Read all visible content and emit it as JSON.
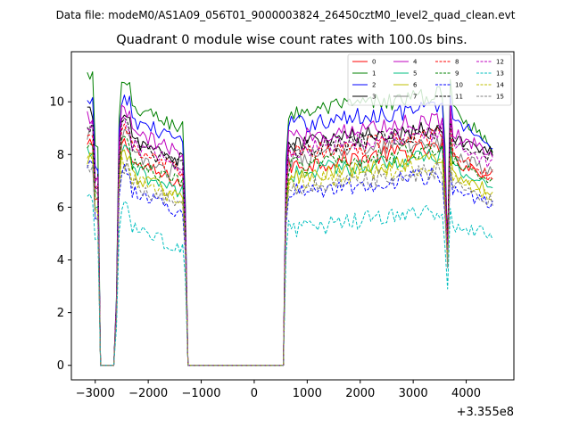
{
  "chart_data": {
    "type": "line",
    "suptitle": "Data file: modeM0/AS1A09_056T01_9000003824_26450cztM0_level2_quad_clean.evt",
    "title": "Quadrant 0 module wise count rates with 100.0s bins.",
    "x_offset_label": "+3.355e8",
    "xlim": [
      -3450,
      4900
    ],
    "ylim": [
      -0.55,
      11.9
    ],
    "x_ticks": [
      -3000,
      -2000,
      -1000,
      0,
      1000,
      2000,
      3000,
      4000
    ],
    "x_tick_labels": [
      "−3000",
      "−2000",
      "−1000",
      "0",
      "1000",
      "2000",
      "3000",
      "4000"
    ],
    "y_ticks": [
      0,
      2,
      4,
      6,
      8,
      10
    ],
    "y_tick_labels": [
      "0",
      "2",
      "4",
      "6",
      "8",
      "10"
    ],
    "legend_position": "top-right",
    "segments": [
      {
        "x_start": -3150,
        "step": 50,
        "count": 5
      },
      {
        "x_start": -2950,
        "step": 50,
        "count": 5
      },
      {
        "x_start": -2750,
        "step": 50,
        "count": 30
      },
      {
        "x_start": -1250,
        "step": 50,
        "count": 37
      },
      {
        "x_start": 600,
        "step": 50,
        "count": 79
      }
    ],
    "series": [
      {
        "name": "0",
        "color": "#ff0000",
        "dash": "solid",
        "base": 8.2,
        "pre": 8.3,
        "dip": 4.5,
        "end": 7.2
      },
      {
        "name": "1",
        "color": "#008000",
        "dash": "solid",
        "base": 10.4,
        "pre": 11.0,
        "dip": 4.3,
        "end": 8.3
      },
      {
        "name": "2",
        "color": "#0000ff",
        "dash": "solid",
        "base": 9.9,
        "pre": 9.9,
        "dip": 4.2,
        "end": 8.4
      },
      {
        "name": "3",
        "color": "#000000",
        "dash": "solid",
        "base": 9.1,
        "pre": 9.6,
        "dip": 4.4,
        "end": 8.1
      },
      {
        "name": "4",
        "color": "#bf00bf",
        "dash": "solid",
        "base": 9.4,
        "pre": 9.4,
        "dip": 4.0,
        "end": 8.0
      },
      {
        "name": "5",
        "color": "#00bf80",
        "dash": "solid",
        "base": 7.9,
        "pre": 8.0,
        "dip": 3.9,
        "end": 6.8
      },
      {
        "name": "6",
        "color": "#bfbf00",
        "dash": "solid",
        "base": 7.7,
        "pre": 7.9,
        "dip": 4.1,
        "end": 6.6
      },
      {
        "name": "7",
        "color": "#808080",
        "dash": "solid",
        "base": 8.5,
        "pre": 8.8,
        "dip": 4.0,
        "end": 7.3
      },
      {
        "name": "8",
        "color": "#ff0000",
        "dash": "dashed",
        "base": 8.7,
        "pre": 8.9,
        "dip": 4.6,
        "end": 7.0
      },
      {
        "name": "9",
        "color": "#008000",
        "dash": "dashed",
        "base": 8.2,
        "pre": 8.4,
        "dip": 4.0,
        "end": 7.0
      },
      {
        "name": "10",
        "color": "#0000ff",
        "dash": "dashed",
        "base": 7.1,
        "pre": 7.6,
        "dip": 3.9,
        "end": 6.1
      },
      {
        "name": "11",
        "color": "#000000",
        "dash": "dashed",
        "base": 8.9,
        "pre": 9.1,
        "dip": 4.5,
        "end": 7.9
      },
      {
        "name": "12",
        "color": "#bf00bf",
        "dash": "dashed",
        "base": 8.9,
        "pre": 9.0,
        "dip": 4.2,
        "end": 7.6
      },
      {
        "name": "13",
        "color": "#00bfbf",
        "dash": "dashed",
        "base": 5.6,
        "pre": 6.4,
        "dip": 2.9,
        "end": 5.0
      },
      {
        "name": "14",
        "color": "#bfbf00",
        "dash": "dashed",
        "base": 7.5,
        "pre": 7.8,
        "dip": 3.8,
        "end": 6.4
      },
      {
        "name": "15",
        "color": "#808080",
        "dash": "dashed",
        "base": 7.3,
        "pre": 7.5,
        "dip": 3.7,
        "end": 6.2
      }
    ]
  }
}
